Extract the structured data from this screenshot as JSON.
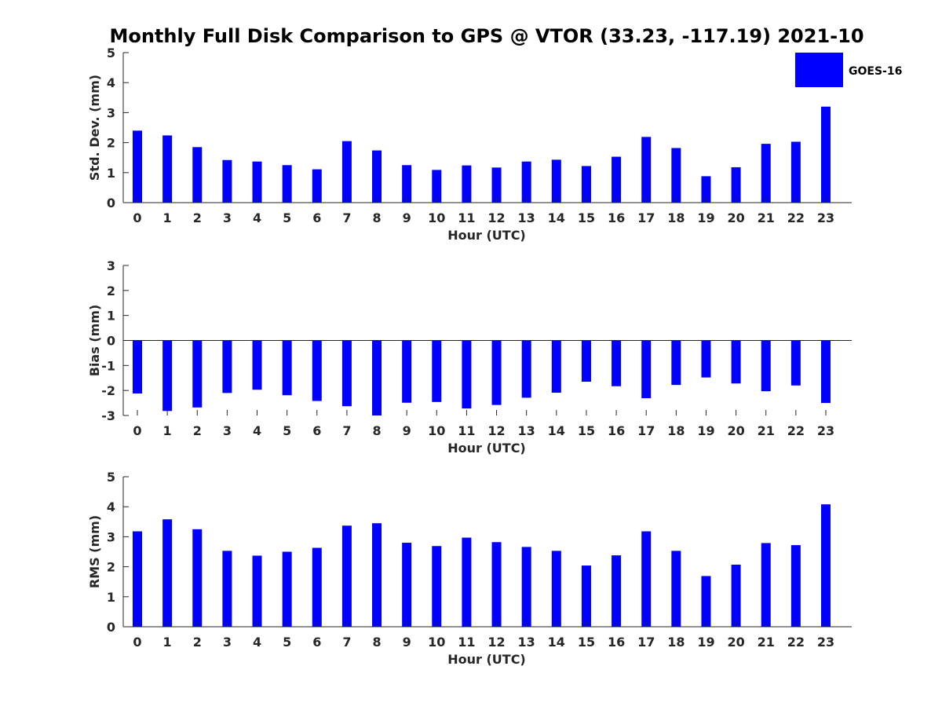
{
  "chart_data": {
    "type": "bar",
    "title": "Monthly Full Disk Comparison to GPS @ VTOR (33.23, -117.19) 2021-10",
    "legend": {
      "entries": [
        "GOES-16"
      ],
      "placement": "top-right"
    },
    "bar_color": "#0000ff",
    "categories": [
      "0",
      "1",
      "2",
      "3",
      "4",
      "5",
      "6",
      "7",
      "8",
      "9",
      "10",
      "11",
      "12",
      "13",
      "14",
      "15",
      "16",
      "17",
      "18",
      "19",
      "20",
      "21",
      "22",
      "23"
    ],
    "panels": [
      {
        "xlabel": "Hour (UTC)",
        "ylabel": "Std. Dev. (mm)",
        "ylim": [
          0,
          5
        ],
        "yticks": [
          "0",
          "1",
          "2",
          "3",
          "4",
          "5"
        ],
        "series": [
          {
            "name": "GOES-16",
            "values": [
              2.4,
              2.24,
              1.85,
              1.42,
              1.37,
              1.25,
              1.11,
              2.05,
              1.74,
              1.25,
              1.09,
              1.24,
              1.17,
              1.37,
              1.43,
              1.22,
              1.53,
              2.19,
              1.82,
              0.88,
              1.18,
              1.96,
              2.03,
              3.2
            ]
          }
        ]
      },
      {
        "xlabel": "Hour (UTC)",
        "ylabel": "Bias (mm)",
        "ylim": [
          -3,
          3
        ],
        "yticks": [
          "-3",
          "-2",
          "-1",
          "0",
          "1",
          "2",
          "3"
        ],
        "series": [
          {
            "name": "GOES-16",
            "values": [
              -2.12,
              -2.82,
              -2.68,
              -2.1,
              -1.97,
              -2.19,
              -2.42,
              -2.63,
              -3.0,
              -2.49,
              -2.46,
              -2.72,
              -2.58,
              -2.29,
              -2.09,
              -1.65,
              -1.83,
              -2.31,
              -1.78,
              -1.48,
              -1.72,
              -2.03,
              -1.8,
              -2.5
            ]
          }
        ]
      },
      {
        "xlabel": "Hour (UTC)",
        "ylabel": "RMS (mm)",
        "ylim": [
          0,
          5
        ],
        "yticks": [
          "0",
          "1",
          "2",
          "3",
          "4",
          "5"
        ],
        "series": [
          {
            "name": "GOES-16",
            "values": [
              3.18,
              3.58,
              3.25,
              2.53,
              2.37,
              2.5,
              2.63,
              3.37,
              3.45,
              2.8,
              2.69,
              2.97,
              2.82,
              2.66,
              2.53,
              2.04,
              2.38,
              3.18,
              2.53,
              1.69,
              2.07,
              2.79,
              2.72,
              4.08
            ]
          }
        ]
      }
    ]
  }
}
